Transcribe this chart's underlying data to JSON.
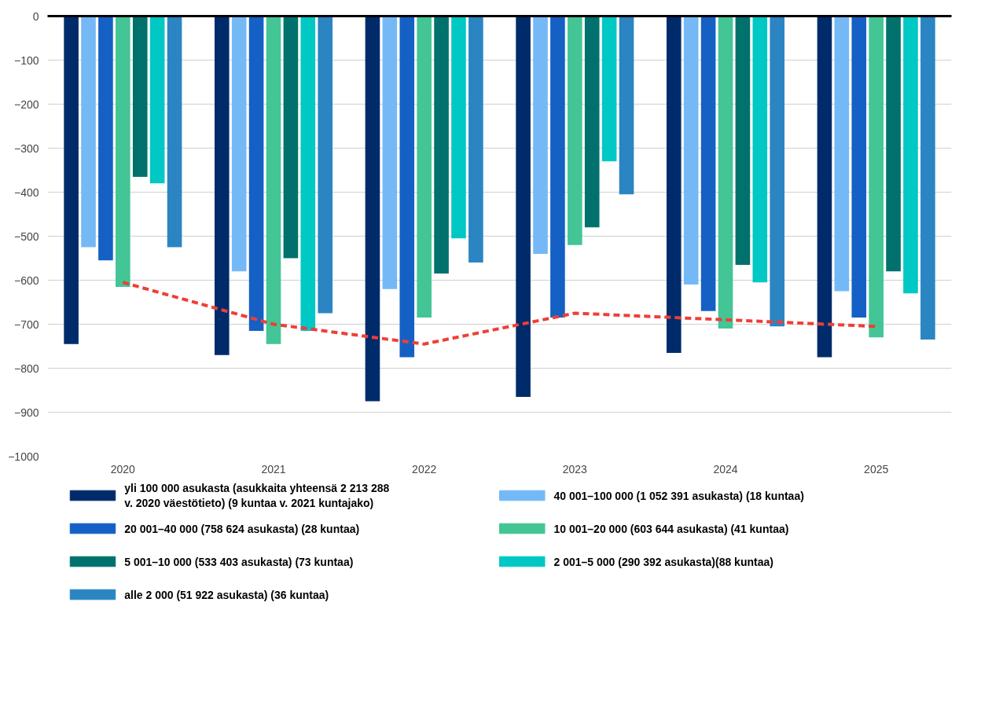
{
  "chart_data": {
    "type": "bar",
    "categories": [
      "2020",
      "2021",
      "2022",
      "2023",
      "2024",
      "2025"
    ],
    "ylim": [
      -1000,
      0
    ],
    "yticks": [
      0,
      -100,
      -200,
      -300,
      -400,
      -500,
      -600,
      -700,
      -800,
      -900,
      -1000
    ],
    "grid": "y",
    "legend": "bottom",
    "series": [
      {
        "name": "yli 100 000 asukasta (asukkaita yhteensä 2 213 288 v. 2020 väestötieto) (9 kuntaa v. 2021 kuntajako)",
        "color": "#002b6b",
        "values": [
          -745,
          -770,
          -875,
          -865,
          -765,
          -775
        ]
      },
      {
        "name": "40 001–100 000 (1 052 391 asukasta) (18 kuntaa)",
        "color": "#74b9f6",
        "values": [
          -525,
          -580,
          -620,
          -540,
          -610,
          -625
        ]
      },
      {
        "name": "20 001–40 000 (758 624 asukasta) (28 kuntaa)",
        "color": "#1560c4",
        "values": [
          -555,
          -715,
          -775,
          -685,
          -670,
          -685
        ]
      },
      {
        "name": "10 001–20 000 (603 644 asukasta) (41 kuntaa)",
        "color": "#43c595",
        "values": [
          -615,
          -745,
          -685,
          -520,
          -710,
          -730
        ]
      },
      {
        "name": "5 001–10 000 (533 403 asukasta) (73 kuntaa)",
        "color": "#00716c",
        "values": [
          -365,
          -550,
          -585,
          -480,
          -565,
          -580
        ]
      },
      {
        "name": "2 001–5 000 (290 392 asukasta)(88 kuntaa)",
        "color": "#00c8c4",
        "values": [
          -380,
          -715,
          -505,
          -330,
          -605,
          -630
        ]
      },
      {
        "name": "alle 2 000 (51 922 asukasta) (36 kuntaa)",
        "color": "#2a85c2",
        "values": [
          -525,
          -675,
          -560,
          -405,
          -705,
          -735
        ]
      },
      {
        "type": "line",
        "color": "#ef3e36",
        "line_style": "dashed",
        "values": [
          -605,
          -700,
          -745,
          -675,
          -690,
          -705
        ]
      }
    ]
  }
}
